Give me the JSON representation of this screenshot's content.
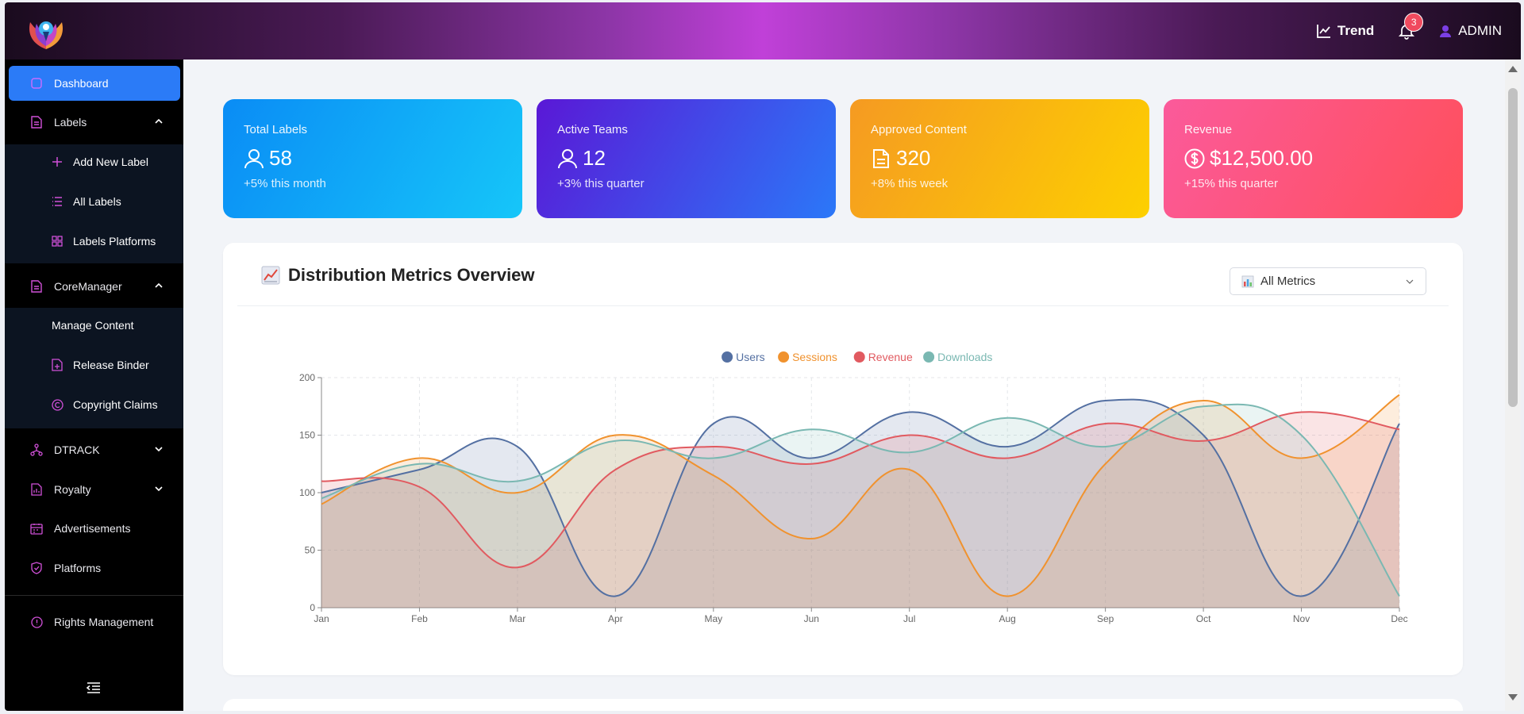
{
  "header": {
    "trend_label": "Trend",
    "notification_count": "3",
    "user_label": "ADMIN"
  },
  "sidebar": {
    "items": [
      {
        "label": "Dashboard",
        "icon": "square-icon",
        "active": true
      },
      {
        "label": "Labels",
        "icon": "file-icon",
        "expanded": true
      },
      {
        "label": "CoreManager",
        "icon": "file-icon",
        "expanded": true
      },
      {
        "label": "DTRACK",
        "icon": "network-icon",
        "expanded": false
      },
      {
        "label": "Royalty",
        "icon": "file-chart-icon",
        "expanded": false
      },
      {
        "label": "Advertisements",
        "icon": "calendar-icon"
      },
      {
        "label": "Platforms",
        "icon": "shield-icon"
      },
      {
        "label": "Rights Management",
        "icon": "info-icon"
      }
    ],
    "labels_sub": [
      {
        "label": "Add New Label",
        "icon": "plus-icon"
      },
      {
        "label": "All Labels",
        "icon": "list-icon"
      },
      {
        "label": "Labels Platforms",
        "icon": "grid-icon"
      }
    ],
    "core_sub": [
      {
        "label": "Manage Content",
        "icon": ""
      },
      {
        "label": "Release Binder",
        "icon": "file-plus-icon"
      },
      {
        "label": "Copyright Claims",
        "icon": "copyright-icon"
      }
    ]
  },
  "stats": [
    {
      "title": "Total Labels",
      "value": "58",
      "sub": "+5% this month",
      "icon": "user-icon"
    },
    {
      "title": "Active Teams",
      "value": "12",
      "sub": "+3% this quarter",
      "icon": "user-icon"
    },
    {
      "title": "Approved Content",
      "value": "320",
      "sub": "+8% this week",
      "icon": "document-icon"
    },
    {
      "title": "Revenue",
      "value": "$12,500.00",
      "sub": "+15% this quarter",
      "icon": "dollar-icon"
    }
  ],
  "colors": {
    "stat_gradients": [
      [
        "#0a8cf5",
        "#16c6f9"
      ],
      [
        "#5a18d6",
        "#2b78f8"
      ],
      [
        "#f59a22",
        "#fdd000"
      ],
      [
        "#fb5a9b",
        "#ff4f5a"
      ]
    ],
    "accent": "#2b7bf7"
  },
  "chart_card": {
    "title": "Distribution Metrics Overview",
    "select_value": "All Metrics"
  },
  "chart_data": {
    "type": "area",
    "categories": [
      "Jan",
      "Feb",
      "Mar",
      "Apr",
      "May",
      "Jun",
      "Jul",
      "Aug",
      "Sep",
      "Oct",
      "Nov",
      "Dec"
    ],
    "ylim": [
      0,
      200
    ],
    "yticks": [
      0,
      50,
      100,
      150,
      200
    ],
    "legend_position": "top-center",
    "grid": true,
    "series": [
      {
        "name": "Users",
        "color": "#5470a2",
        "values": [
          100,
          120,
          140,
          10,
          160,
          130,
          170,
          140,
          180,
          150,
          10,
          160
        ]
      },
      {
        "name": "Sessions",
        "color": "#f0922e",
        "values": [
          90,
          130,
          100,
          150,
          115,
          60,
          120,
          10,
          125,
          180,
          130,
          185
        ]
      },
      {
        "name": "Revenue",
        "color": "#e15a60",
        "values": [
          110,
          105,
          35,
          120,
          140,
          125,
          150,
          130,
          160,
          145,
          170,
          155
        ]
      },
      {
        "name": "Downloads",
        "color": "#7ab8b2",
        "values": [
          95,
          125,
          110,
          145,
          130,
          155,
          135,
          165,
          140,
          175,
          150,
          10
        ]
      }
    ]
  }
}
